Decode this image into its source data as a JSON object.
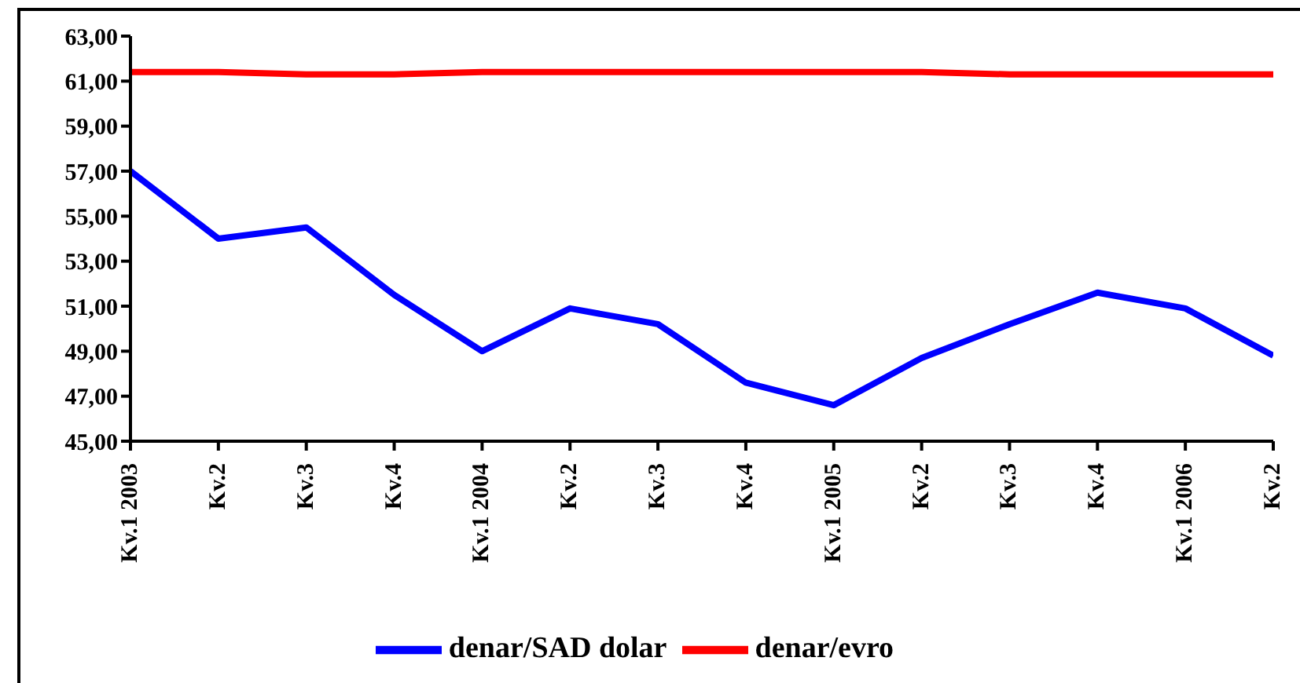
{
  "chart_data": {
    "type": "line",
    "categories": [
      "Kv.1 2003",
      "Kv.2",
      "Kv.3",
      "Kv.4",
      "Kv.1 2004",
      "Kv.2",
      "Kv.3",
      "Kv.4",
      "Kv.1 2005",
      "Kv.2",
      "Kv.3",
      "Kv.4",
      "Kv.1 2006",
      "Kv.2"
    ],
    "series": [
      {
        "name": "denar/SAD dolar",
        "color": "#0000ff",
        "values": [
          57.0,
          54.0,
          54.5,
          51.5,
          49.0,
          50.9,
          50.2,
          47.6,
          46.6,
          48.7,
          50.2,
          51.6,
          50.9,
          48.8
        ]
      },
      {
        "name": "denar/evro",
        "color": "#ff0000",
        "values": [
          61.4,
          61.4,
          61.3,
          61.3,
          61.4,
          61.4,
          61.4,
          61.4,
          61.4,
          61.4,
          61.3,
          61.3,
          61.3,
          61.3
        ]
      }
    ],
    "ylim": [
      45,
      63
    ],
    "yticks": [
      {
        "value": 45,
        "label": "45,00"
      },
      {
        "value": 47,
        "label": "47,00"
      },
      {
        "value": 49,
        "label": "49,00"
      },
      {
        "value": 51,
        "label": "51,00"
      },
      {
        "value": 53,
        "label": "53,00"
      },
      {
        "value": 55,
        "label": "55,00"
      },
      {
        "value": 57,
        "label": "57,00"
      },
      {
        "value": 59,
        "label": "59,00"
      },
      {
        "value": 61,
        "label": "61,00"
      },
      {
        "value": 63,
        "label": "63,00"
      }
    ],
    "grid": false,
    "legend": "bottom",
    "marker": "none",
    "line_style": "solid"
  }
}
